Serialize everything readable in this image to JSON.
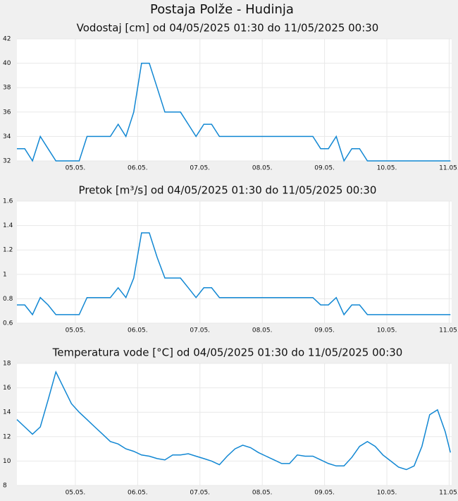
{
  "title": "Postaja Polže - Hudinja",
  "chart_data": [
    {
      "type": "line",
      "title": "Vodostaj [cm] od 04/05/2025 01:30 do 11/05/2025 00:30",
      "x": [
        0.0625,
        0.1875,
        0.3125,
        0.4375,
        0.5625,
        0.6875,
        0.8125,
        0.9375,
        1.0625,
        1.1875,
        1.3125,
        1.4375,
        1.5625,
        1.6875,
        1.8125,
        1.9375,
        2.0625,
        2.1875,
        2.3125,
        2.4375,
        2.5625,
        2.6875,
        2.8125,
        2.9375,
        3.0625,
        3.1875,
        3.3125,
        3.4375,
        3.5625,
        3.6875,
        3.8125,
        3.9375,
        4.0625,
        4.1875,
        4.3125,
        4.4375,
        4.5625,
        4.6875,
        4.8125,
        4.9375,
        5.0625,
        5.1875,
        5.3125,
        5.4375,
        5.5625,
        5.6875,
        5.8125,
        5.9375,
        6.0625,
        6.1875,
        6.3125,
        6.4375,
        6.5625,
        6.6875,
        6.8125,
        6.9375,
        7.0208
      ],
      "series": [
        {
          "color": "#1187d3",
          "values": [
            33,
            33,
            32,
            34,
            33,
            32,
            32,
            32,
            32,
            34,
            34,
            34,
            34,
            35,
            34,
            36,
            40,
            40,
            38,
            36,
            36,
            36,
            35,
            34,
            35,
            35,
            34,
            34,
            34,
            34,
            34,
            34,
            34,
            34,
            34,
            34,
            34,
            34,
            34,
            33,
            33,
            34,
            32,
            33,
            33,
            32,
            32,
            32,
            32,
            32,
            32,
            32,
            32,
            32,
            32,
            32,
            32
          ]
        }
      ],
      "xlim": [
        0.0625,
        7.04
      ],
      "xticks": [
        {
          "value": 1,
          "label": "05.05."
        },
        {
          "value": 2,
          "label": "06.05."
        },
        {
          "value": 3,
          "label": "07.05."
        },
        {
          "value": 4,
          "label": "08.05."
        },
        {
          "value": 5,
          "label": "09.05."
        },
        {
          "value": 6,
          "label": "10.05."
        },
        {
          "value": 7,
          "label": "11.05."
        }
      ],
      "ylim": [
        32,
        42
      ],
      "yticks": [
        32,
        34,
        36,
        38,
        40,
        42
      ],
      "grid": true
    },
    {
      "type": "line",
      "title": "Pretok [m³/s] od 04/05/2025 01:30 do 11/05/2025 00:30",
      "x": [
        0.0625,
        0.1875,
        0.3125,
        0.4375,
        0.5625,
        0.6875,
        0.8125,
        0.9375,
        1.0625,
        1.1875,
        1.3125,
        1.4375,
        1.5625,
        1.6875,
        1.8125,
        1.9375,
        2.0625,
        2.1875,
        2.3125,
        2.4375,
        2.5625,
        2.6875,
        2.8125,
        2.9375,
        3.0625,
        3.1875,
        3.3125,
        3.4375,
        3.5625,
        3.6875,
        3.8125,
        3.9375,
        4.0625,
        4.1875,
        4.3125,
        4.4375,
        4.5625,
        4.6875,
        4.8125,
        4.9375,
        5.0625,
        5.1875,
        5.3125,
        5.4375,
        5.5625,
        5.6875,
        5.8125,
        5.9375,
        6.0625,
        6.1875,
        6.3125,
        6.4375,
        6.5625,
        6.6875,
        6.8125,
        6.9375,
        7.0208
      ],
      "series": [
        {
          "color": "#1187d3",
          "values": [
            0.75,
            0.75,
            0.67,
            0.81,
            0.75,
            0.67,
            0.67,
            0.67,
            0.67,
            0.81,
            0.81,
            0.81,
            0.81,
            0.89,
            0.81,
            0.97,
            1.34,
            1.34,
            1.14,
            0.97,
            0.97,
            0.97,
            0.89,
            0.81,
            0.89,
            0.89,
            0.81,
            0.81,
            0.81,
            0.81,
            0.81,
            0.81,
            0.81,
            0.81,
            0.81,
            0.81,
            0.81,
            0.81,
            0.81,
            0.75,
            0.75,
            0.81,
            0.67,
            0.75,
            0.75,
            0.67,
            0.67,
            0.67,
            0.67,
            0.67,
            0.67,
            0.67,
            0.67,
            0.67,
            0.67,
            0.67,
            0.67
          ]
        }
      ],
      "xlim": [
        0.0625,
        7.04
      ],
      "xticks": [
        {
          "value": 1,
          "label": "05.05."
        },
        {
          "value": 2,
          "label": "06.05."
        },
        {
          "value": 3,
          "label": "07.05."
        },
        {
          "value": 4,
          "label": "08.05."
        },
        {
          "value": 5,
          "label": "09.05."
        },
        {
          "value": 6,
          "label": "10.05."
        },
        {
          "value": 7,
          "label": "11.05."
        }
      ],
      "ylim": [
        0.6,
        1.6
      ],
      "yticks": [
        0.6,
        0.8,
        1,
        1.2,
        1.4,
        1.6
      ],
      "grid": true
    },
    {
      "type": "line",
      "title": "Temperatura vode [°C] od 04/05/2025 01:30 do 11/05/2025 00:30",
      "x": [
        0.0625,
        0.1875,
        0.3125,
        0.4375,
        0.5625,
        0.6875,
        0.8125,
        0.9375,
        1.0625,
        1.1875,
        1.3125,
        1.4375,
        1.5625,
        1.6875,
        1.8125,
        1.9375,
        2.0625,
        2.1875,
        2.3125,
        2.4375,
        2.5625,
        2.6875,
        2.8125,
        2.9375,
        3.0625,
        3.1875,
        3.3125,
        3.4375,
        3.5625,
        3.6875,
        3.8125,
        3.9375,
        4.0625,
        4.1875,
        4.3125,
        4.4375,
        4.5625,
        4.6875,
        4.8125,
        4.9375,
        5.0625,
        5.1875,
        5.3125,
        5.4375,
        5.5625,
        5.6875,
        5.8125,
        5.9375,
        6.0625,
        6.1875,
        6.3125,
        6.4375,
        6.5625,
        6.6875,
        6.8125,
        6.9375,
        7.0208
      ],
      "series": [
        {
          "color": "#1187d3",
          "values": [
            13.4,
            12.8,
            12.2,
            12.8,
            15,
            17.3,
            16,
            14.7,
            14,
            13.4,
            12.8,
            12.2,
            11.6,
            11.4,
            11,
            10.8,
            10.5,
            10.4,
            10.2,
            10.1,
            10.5,
            10.5,
            10.6,
            10.4,
            10.2,
            10,
            9.7,
            10.4,
            11,
            11.3,
            11.1,
            10.7,
            10.4,
            10.1,
            9.8,
            9.8,
            10.5,
            10.4,
            10.4,
            10.1,
            9.8,
            9.6,
            9.6,
            10.3,
            11.2,
            11.6,
            11.2,
            10.5,
            10,
            9.5,
            9.3,
            9.6,
            11.2,
            13.8,
            14.2,
            12.4,
            10.7
          ]
        }
      ],
      "xlim": [
        0.0625,
        7.04
      ],
      "xticks": [
        {
          "value": 1,
          "label": "05.05."
        },
        {
          "value": 2,
          "label": "06.05."
        },
        {
          "value": 3,
          "label": "07.05."
        },
        {
          "value": 4,
          "label": "08.05."
        },
        {
          "value": 5,
          "label": "09.05."
        },
        {
          "value": 6,
          "label": "10.05."
        },
        {
          "value": 7,
          "label": "11.05."
        }
      ],
      "ylim": [
        8,
        18
      ],
      "yticks": [
        8,
        10,
        12,
        14,
        16,
        18
      ],
      "grid": true
    }
  ]
}
